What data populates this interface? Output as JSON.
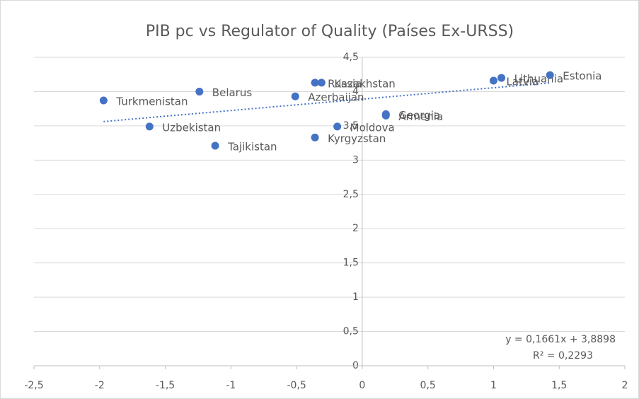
{
  "chart_data": {
    "type": "scatter",
    "title": "PIB pc vs Regulator of Quality (Países Ex-URSS)",
    "x": [
      -1.97,
      -1.62,
      -1.24,
      -1.12,
      -0.51,
      -0.36,
      -0.31,
      -0.36,
      -0.19,
      0.18,
      0.18,
      1.0,
      1.06,
      1.43
    ],
    "values": [
      3.87,
      3.49,
      4.0,
      3.21,
      3.93,
      4.13,
      4.13,
      3.33,
      3.49,
      3.67,
      3.65,
      4.16,
      4.2,
      4.24
    ],
    "point_labels": [
      "Turkmenistan",
      "Uzbekistan",
      "Belarus",
      "Tajikistan",
      "Azerbaijan",
      "Russia",
      "Kazakhstan",
      "Kyrgyzstan",
      "Moldova",
      "Georgia",
      "Armenia",
      "Latvia",
      "Lithuania",
      "Estonia"
    ],
    "color": "#4472c4",
    "xlim": [
      -2.5,
      2
    ],
    "xticks": [
      {
        "value": -2.5,
        "label": "-2,5"
      },
      -2,
      {
        "value": -1.5,
        "label": "-1,5"
      },
      -1,
      {
        "value": -0.5,
        "label": "-0,5"
      },
      0,
      {
        "value": 0.5,
        "label": "0,5"
      },
      1,
      {
        "value": 1.5,
        "label": "1,5"
      },
      2
    ],
    "ylim": [
      0,
      4.5
    ],
    "yticks": [
      0,
      {
        "value": 0.5,
        "label": "0,5"
      },
      1,
      {
        "value": 1.5,
        "label": "1,5"
      },
      2,
      {
        "value": 2.5,
        "label": "2,5"
      },
      3,
      {
        "value": 3.5,
        "label": "3,5"
      },
      4,
      {
        "value": 4.5,
        "label": "4,5"
      }
    ],
    "grid": true,
    "trendline": {
      "slope": 0.1661,
      "intercept": 3.8898,
      "equation": "y = 0,1661x + 3,8898",
      "r2": "R² = 0,2293"
    }
  }
}
